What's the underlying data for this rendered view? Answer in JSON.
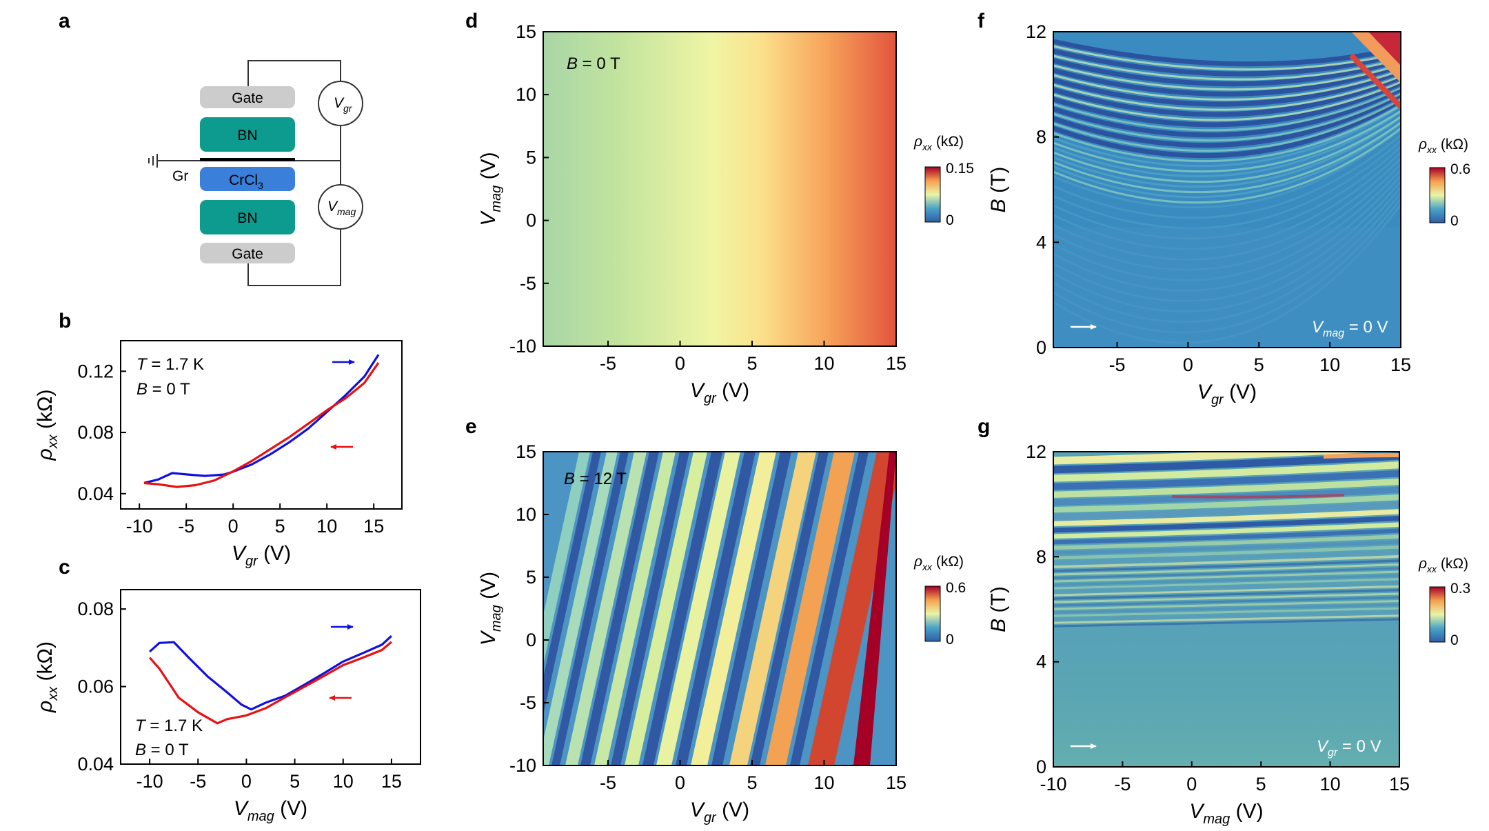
{
  "panel_labels": [
    "a",
    "b",
    "c",
    "d",
    "e",
    "f",
    "g"
  ],
  "schematic": {
    "layers": [
      "Gate",
      "BN",
      "CrCl",
      "BN",
      "Gate"
    ],
    "crcl_sub": "3",
    "graphene_label": "Gr",
    "meter_top": "V",
    "meter_top_sub": "gr",
    "meter_bottom": "V",
    "meter_bottom_sub": "mag",
    "colors": {
      "gate": "#cccccc",
      "bn": "#0e9b8f",
      "crcl3": "#3a7fd9"
    }
  },
  "annotations": {
    "T_sym": "T",
    "T_val": " = 1.7 K",
    "B_sym": "B",
    "B_zero": " = 0 T",
    "B_twelve": " = 12 T",
    "Vmag_sym": "V",
    "Vmag_sub": "mag",
    "Vgr_sym": "V",
    "Vgr_sub": "gr",
    "zero_V": " = 0 V"
  },
  "series_colors": {
    "forward": "#1010e0",
    "backward": "#e81010"
  },
  "chart_data": [
    {
      "id": "b",
      "type": "line",
      "xlabel": "V",
      "xlabel_sub": "gr",
      "xunit": " (V)",
      "ylabel": "ρ",
      "ylabel_sub": "xx",
      "yunit": " (kΩ)",
      "xlim": [
        -12,
        18
      ],
      "ylim": [
        0.03,
        0.14
      ],
      "xticks": [
        -10,
        -5,
        0,
        5,
        10,
        15
      ],
      "yticks": [
        0.04,
        0.08,
        0.12
      ],
      "ytick_labels": [
        "0.04",
        "0.08",
        "0.12"
      ],
      "series": [
        {
          "name": "forward sweep",
          "color": "#1010e0",
          "x": [
            -9.5,
            -8,
            -6.5,
            -5,
            -3,
            -1,
            0,
            2,
            4,
            6,
            8,
            10,
            12,
            14,
            15.5
          ],
          "y": [
            0.047,
            0.049,
            0.053,
            0.052,
            0.051,
            0.052,
            0.054,
            0.059,
            0.066,
            0.074,
            0.083,
            0.094,
            0.105,
            0.117,
            0.131
          ]
        },
        {
          "name": "backward sweep",
          "color": "#e81010",
          "x": [
            15.5,
            14,
            12,
            10,
            8,
            6,
            4,
            2,
            0,
            -2,
            -4,
            -6,
            -8,
            -9.5
          ],
          "y": [
            0.126,
            0.113,
            0.103,
            0.095,
            0.086,
            0.077,
            0.069,
            0.061,
            0.054,
            0.048,
            0.045,
            0.044,
            0.046,
            0.047
          ]
        }
      ]
    },
    {
      "id": "c",
      "type": "line",
      "xlabel": "V",
      "xlabel_sub": "mag",
      "xunit": " (V)",
      "ylabel": "ρ",
      "ylabel_sub": "xx",
      "yunit": " (kΩ)",
      "xlim": [
        -13,
        18
      ],
      "ylim": [
        0.04,
        0.085
      ],
      "xticks": [
        -10,
        -5,
        0,
        5,
        10,
        15
      ],
      "yticks": [
        0.04,
        0.06,
        0.08
      ],
      "ytick_labels": [
        "0.04",
        "0.06",
        "0.08"
      ],
      "series": [
        {
          "name": "forward sweep",
          "color": "#1010e0",
          "x": [
            -10,
            -9,
            -7.5,
            -6,
            -4,
            -2,
            -0.5,
            0.5,
            2,
            4,
            6,
            8,
            10,
            12,
            14,
            15
          ],
          "y": [
            0.069,
            0.071,
            0.071,
            0.067,
            0.062,
            0.058,
            0.055,
            0.054,
            0.056,
            0.058,
            0.061,
            0.064,
            0.067,
            0.069,
            0.071,
            0.073
          ]
        },
        {
          "name": "backward sweep",
          "color": "#e81010",
          "x": [
            15,
            14,
            12,
            10,
            8,
            6,
            4,
            2,
            0,
            -2,
            -3,
            -5,
            -7,
            -8,
            -9,
            -10
          ],
          "y": [
            0.072,
            0.07,
            0.068,
            0.066,
            0.063,
            0.06,
            0.057,
            0.054,
            0.052,
            0.051,
            0.05,
            0.053,
            0.057,
            0.061,
            0.065,
            0.068
          ]
        }
      ]
    },
    {
      "id": "d",
      "type": "heatmap",
      "xlabel": "V",
      "xlabel_sub": "gr",
      "xunit": " (V)",
      "ylabel": "V",
      "ylabel_sub": "mag",
      "yunit": " (V)",
      "xlim": [
        -9.5,
        15
      ],
      "ylim": [
        -10,
        15
      ],
      "xticks": [
        -5,
        0,
        5,
        10,
        15
      ],
      "yticks": [
        -10,
        -5,
        0,
        5,
        10,
        15
      ],
      "annotation": "B = 0 T",
      "colorbar": {
        "label": "ρxx (kΩ)",
        "min": 0,
        "max": 0.15,
        "labels": [
          "0",
          "0.15"
        ]
      }
    },
    {
      "id": "e",
      "type": "heatmap",
      "xlabel": "V",
      "xlabel_sub": "gr",
      "xunit": " (V)",
      "ylabel": "V",
      "ylabel_sub": "mag",
      "yunit": " (V)",
      "xlim": [
        -9.5,
        15
      ],
      "ylim": [
        -10,
        15
      ],
      "xticks": [
        -5,
        0,
        5,
        10,
        15
      ],
      "yticks": [
        -10,
        -5,
        0,
        5,
        10,
        15
      ],
      "annotation": "B = 12 T",
      "colorbar": {
        "label": "ρxx (kΩ)",
        "min": 0,
        "max": 0.6,
        "labels": [
          "0",
          "0.6"
        ]
      }
    },
    {
      "id": "f",
      "type": "heatmap",
      "xlabel": "V",
      "xlabel_sub": "gr",
      "xunit": " (V)",
      "ylabel": "B",
      "ylabel_sub": "",
      "yunit": " (T)",
      "xlim": [
        -9.5,
        15
      ],
      "ylim": [
        0,
        12
      ],
      "xticks": [
        -5,
        0,
        5,
        10,
        15
      ],
      "yticks": [
        0,
        4,
        8,
        12
      ],
      "annotation": "Vmag = 0 V",
      "colorbar": {
        "label": "ρxx (kΩ)",
        "min": 0,
        "max": 0.6,
        "labels": [
          "0",
          "0.6"
        ]
      }
    },
    {
      "id": "g",
      "type": "heatmap",
      "xlabel": "V",
      "xlabel_sub": "mag",
      "xunit": " (V)",
      "ylabel": "B",
      "ylabel_sub": "",
      "yunit": " (T)",
      "xlim": [
        -10,
        15
      ],
      "ylim": [
        0,
        12
      ],
      "xticks": [
        -10,
        -5,
        0,
        5,
        10,
        15
      ],
      "yticks": [
        0,
        4,
        8,
        12
      ],
      "annotation": "Vgr = 0 V",
      "colorbar": {
        "label": "ρxx (kΩ)",
        "min": 0,
        "max": 0.3,
        "labels": [
          "0",
          "0.3"
        ]
      }
    }
  ]
}
